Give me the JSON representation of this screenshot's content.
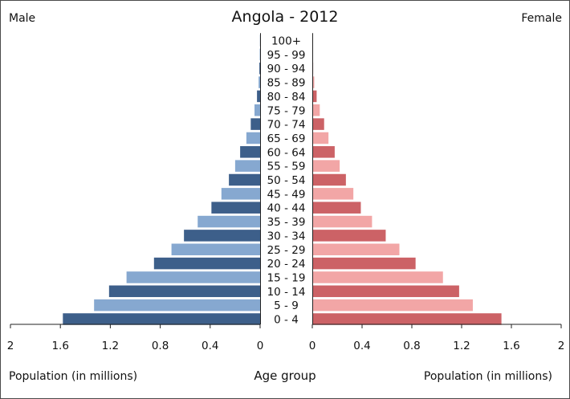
{
  "chart_data": {
    "type": "bar",
    "orientation": "horizontal-back-to-back",
    "title": "Angola - 2012",
    "left_label": "Male",
    "right_label": "Female",
    "xlabel_left": "Population (in millions)",
    "xlabel_right": "Population (in millions)",
    "center_label": "Age group",
    "xlim": [
      0,
      2
    ],
    "ticks_left": [
      "2",
      "1.6",
      "1.2",
      "0.8",
      "0.4",
      "0"
    ],
    "ticks_right": [
      "0",
      "0.4",
      "0.8",
      "1.2",
      "1.6",
      "2"
    ],
    "tick_values": [
      0,
      0.4,
      0.8,
      1.2,
      1.6,
      2
    ],
    "categories": [
      "0 - 4",
      "5 - 9",
      "10 - 14",
      "15 - 19",
      "20 - 24",
      "25 - 29",
      "30 - 34",
      "35 - 39",
      "40 - 44",
      "45 - 49",
      "50 - 54",
      "55 - 59",
      "60 - 64",
      "65 - 69",
      "70 - 74",
      "75 - 79",
      "80 - 84",
      "85 - 89",
      "90 - 94",
      "95 - 99",
      "100+"
    ],
    "series": [
      {
        "name": "Male",
        "values": [
          1.58,
          1.33,
          1.21,
          1.07,
          0.85,
          0.71,
          0.61,
          0.5,
          0.39,
          0.31,
          0.25,
          0.2,
          0.16,
          0.11,
          0.075,
          0.045,
          0.025,
          0.012,
          0.006,
          0.003,
          0.001
        ]
      },
      {
        "name": "Female",
        "values": [
          1.52,
          1.29,
          1.18,
          1.05,
          0.83,
          0.7,
          0.59,
          0.48,
          0.39,
          0.33,
          0.27,
          0.22,
          0.18,
          0.13,
          0.095,
          0.06,
          0.035,
          0.016,
          0.007,
          0.003,
          0.001
        ]
      }
    ],
    "colors": {
      "male_dark": "#3d5f8a",
      "male_light": "#86a8d0",
      "female_dark": "#cc6266",
      "female_light": "#f2a6a6"
    },
    "legend": "none",
    "grid": false
  }
}
